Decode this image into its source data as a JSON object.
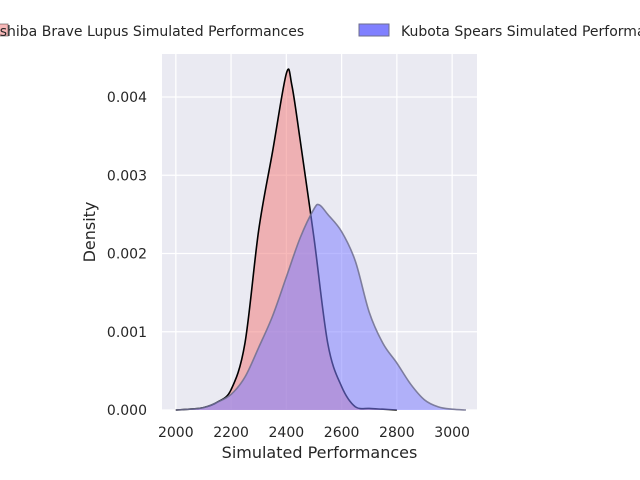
{
  "chart_data": {
    "type": "area",
    "title": "",
    "xlabel": "Simulated Performances",
    "ylabel": "Density",
    "xlim": [
      1950,
      3090
    ],
    "ylim": [
      0,
      0.00455
    ],
    "xticks": [
      "2000",
      "2200",
      "2400",
      "2600",
      "2800",
      "3000"
    ],
    "yticks": [
      "0.000",
      "0.001",
      "0.002",
      "0.003",
      "0.004"
    ],
    "grid": true,
    "legend": "top, above plot (clipped at image edges)",
    "series": [
      {
        "name": "Toshiba Brave Lupus Simulated Performances",
        "color": "#f08080",
        "edge": "#000000",
        "x": [
          2000,
          2050,
          2100,
          2150,
          2200,
          2250,
          2300,
          2350,
          2400,
          2420,
          2450,
          2500,
          2550,
          2600,
          2650,
          2700,
          2750,
          2800
        ],
        "y": [
          0.0,
          1e-05,
          3e-05,
          0.0001,
          0.00026,
          0.00085,
          0.0023,
          0.0033,
          0.0043,
          0.00415,
          0.00345,
          0.0022,
          0.00085,
          0.0003,
          4e-05,
          2e-05,
          1e-05,
          0.0
        ]
      },
      {
        "name": "Kubota Spears Simulated Performances",
        "color": "#8080ff",
        "edge": "#6e6e8e",
        "x": [
          2000,
          2050,
          2100,
          2150,
          2200,
          2250,
          2300,
          2350,
          2400,
          2450,
          2500,
          2520,
          2550,
          2600,
          2650,
          2700,
          2750,
          2800,
          2850,
          2900,
          2950,
          3000,
          3050
        ],
        "y": [
          0.0,
          1e-05,
          3e-05,
          0.0001,
          0.0002,
          0.00042,
          0.0008,
          0.0012,
          0.0017,
          0.0022,
          0.00257,
          0.00262,
          0.0025,
          0.00228,
          0.0019,
          0.00125,
          0.00085,
          0.0006,
          0.00033,
          0.00013,
          4e-05,
          1e-05,
          0.0
        ]
      }
    ]
  }
}
